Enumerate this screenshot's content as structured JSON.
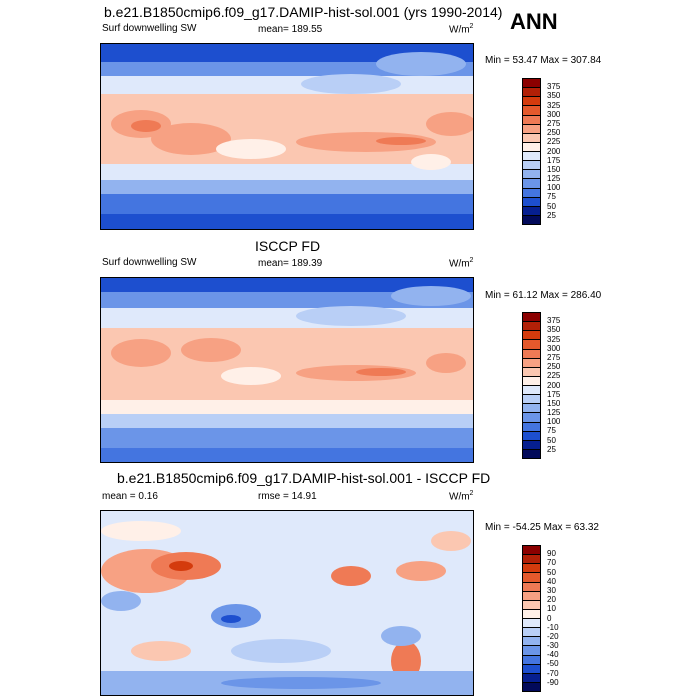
{
  "season": "ANN",
  "panels": [
    {
      "title": "b.e21.B1850cmip6.f09_g17.DAMIP-hist-sol.001 (yrs 1990-2014)",
      "left_label": "Surf downwelling SW",
      "center_label": "mean= 189.55",
      "units": "W/m",
      "units_sup": "2",
      "minmax": "Min =  53.47 Max = 307.84",
      "levels": [
        "375",
        "350",
        "325",
        "300",
        "275",
        "250",
        "225",
        "200",
        "175",
        "150",
        "125",
        "100",
        "75",
        "50",
        "25"
      ]
    },
    {
      "title": "ISCCP FD",
      "left_label": "Surf downwelling SW",
      "center_label": "mean= 189.39",
      "units": "W/m",
      "units_sup": "2",
      "minmax": "Min =  61.12 Max = 286.40",
      "levels": [
        "375",
        "350",
        "325",
        "300",
        "275",
        "250",
        "225",
        "200",
        "175",
        "150",
        "125",
        "100",
        "75",
        "50",
        "25"
      ]
    },
    {
      "title": "b.e21.B1850cmip6.f09_g17.DAMIP-hist-sol.001 - ISCCP FD",
      "left_label": "mean =   0.16",
      "center_label": "rmse =  14.91",
      "units": "W/m",
      "units_sup": "2",
      "minmax": "Min = -54.25 Max =  63.32",
      "levels": [
        "90",
        "70",
        "50",
        "40",
        "30",
        "20",
        "10",
        "0",
        "-10",
        "-20",
        "-30",
        "-40",
        "-50",
        "-70",
        "-90"
      ]
    }
  ],
  "colors": {
    "field_scale": [
      "#8b0000",
      "#b22007",
      "#d43b0d",
      "#e4592c",
      "#ef7a55",
      "#f7a183",
      "#fbc7b1",
      "#fff0e8",
      "#dfe9fb",
      "#b9cff6",
      "#92b3ef",
      "#6b95e8",
      "#4475e0",
      "#1d4fcf",
      "#061f90",
      "#020a5a"
    ],
    "diff_scale": [
      "#8b0000",
      "#b22007",
      "#d43b0d",
      "#e4592c",
      "#ef7a55",
      "#f7a183",
      "#fbc7b1",
      "#fff0e8",
      "#dfe9fb",
      "#b9cff6",
      "#92b3ef",
      "#6b95e8",
      "#4475e0",
      "#1d4fcf",
      "#061f90",
      "#020a5a"
    ]
  }
}
